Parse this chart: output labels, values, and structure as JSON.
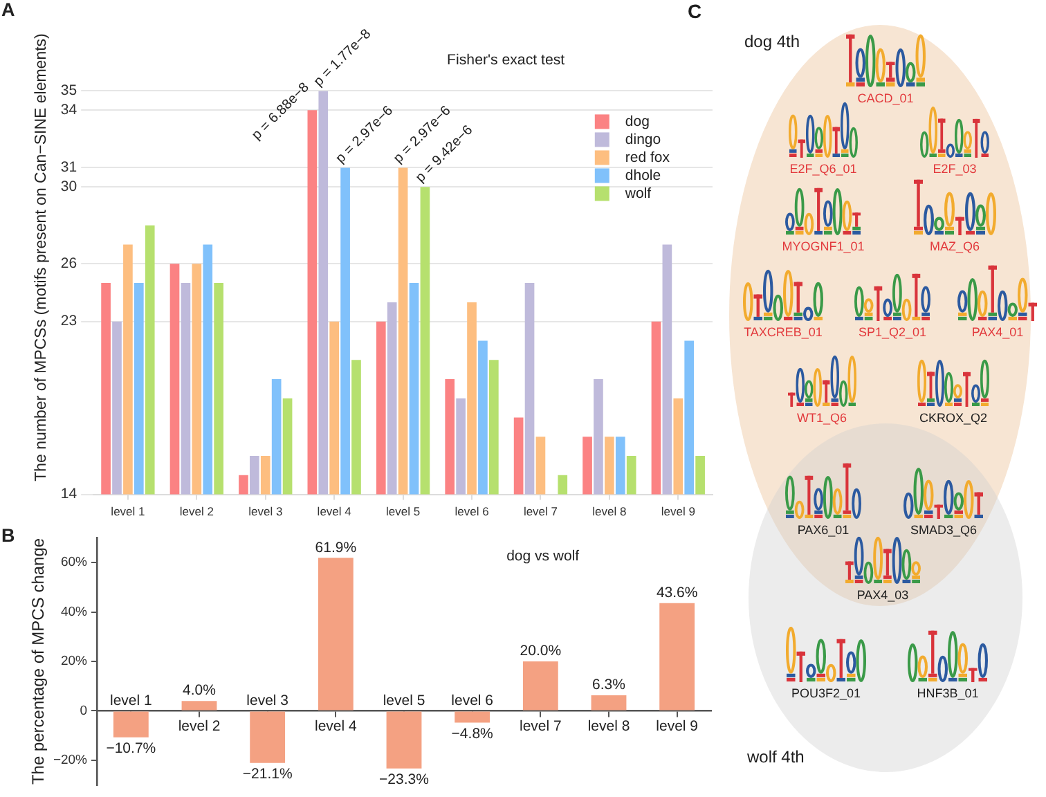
{
  "chart_data": [
    {
      "type": "bar",
      "title": "Fisher's exact test",
      "ylabel": "The number of MPCSs (motifs present on Can−SINE elements)",
      "categories": [
        "level 1",
        "level 2",
        "level 3",
        "level 4",
        "level 5",
        "level 6",
        "level 7",
        "level 8",
        "level 9"
      ],
      "series": [
        {
          "name": "dog",
          "color": "#fb8283",
          "values": [
            25,
            26,
            15,
            34,
            23,
            20,
            18,
            17,
            23
          ]
        },
        {
          "name": "dingo",
          "color": "#bfbadb",
          "values": [
            23,
            25,
            16,
            35,
            24,
            19,
            25,
            20,
            27
          ]
        },
        {
          "name": "red fox",
          "color": "#fdbe80",
          "values": [
            27,
            26,
            16,
            23,
            31,
            24,
            17,
            17,
            19
          ]
        },
        {
          "name": "dhole",
          "color": "#80c1fb",
          "values": [
            25,
            27,
            20,
            31,
            25,
            22,
            null,
            17,
            22
          ]
        },
        {
          "name": "wolf",
          "color": "#b6e06e",
          "values": [
            28,
            25,
            19,
            21,
            30,
            21,
            15,
            16,
            16
          ]
        }
      ],
      "ylim": [
        14,
        35
      ],
      "yticks": [
        14,
        23,
        26,
        30,
        31,
        34,
        35
      ],
      "grid": "y",
      "legend": "top right",
      "annotations": [
        "A",
        {
          "text": "p = 6.88e−8",
          "x": "level 4",
          "y": 34
        },
        {
          "text": "p = 1.77e−8",
          "x": "level 4",
          "y": 35
        },
        {
          "text": "p = 2.97e−6",
          "x": "level 4",
          "y": 31
        },
        {
          "text": "p = 2.97e−6",
          "x": "level 5",
          "y": 31
        },
        {
          "text": "p = 9.42e−6",
          "x": "level 5",
          "y": 30
        }
      ]
    },
    {
      "type": "bar",
      "title": "dog vs wolf",
      "ylabel": "The percentage of MPCS change",
      "categories": [
        "level 1",
        "level 2",
        "level 3",
        "level 4",
        "level 5",
        "level 6",
        "level 7",
        "level 8",
        "level 9"
      ],
      "values": [
        -10.7,
        4.0,
        -21.1,
        61.9,
        -23.3,
        -4.8,
        20.0,
        6.3,
        43.6
      ],
      "color": "#f4a182",
      "value_labels": [
        "−10.7%",
        "4.0%",
        "−21.1%",
        "61.9%",
        "−23.3%",
        "−4.8%",
        "20.0%",
        "6.3%",
        "43.6%"
      ],
      "ylim": [
        -30,
        70
      ],
      "yticks": [
        {
          "value": -20,
          "label": "−20%"
        },
        {
          "value": 0,
          "label": "0"
        },
        {
          "value": 20,
          "label": "20%"
        },
        {
          "value": 40,
          "label": "40%"
        },
        {
          "value": 60,
          "label": "60%"
        }
      ],
      "annotations": [
        "B"
      ]
    },
    {
      "type": "other",
      "annotations": [
        "C",
        "dog 4th",
        "wolf 4th"
      ],
      "categories": [
        "CACD_01",
        "E2F_Q6_01",
        "E2F_03",
        "MYOGNF1_01",
        "MAZ_Q6",
        "TAXCREB_01",
        "SP1_Q2_01",
        "PAX4_01",
        "WT1_Q6",
        "CKROX_Q2",
        "PAX6_01",
        "SMAD3_Q6",
        "PAX4_03",
        "POU3F2_01",
        "HNF3B_01"
      ],
      "colors": [
        "#e2393c",
        "#e2393c",
        "#e2393c",
        "#e2393c",
        "#e2393c",
        "#e2393c",
        "#e2393c",
        "#e2393c",
        "#e2393c",
        "#1e1e1e",
        "#1e1e1e",
        "#1e1e1e",
        "#1e1e1e",
        "#1e1e1e",
        "#1e1e1e"
      ]
    }
  ]
}
